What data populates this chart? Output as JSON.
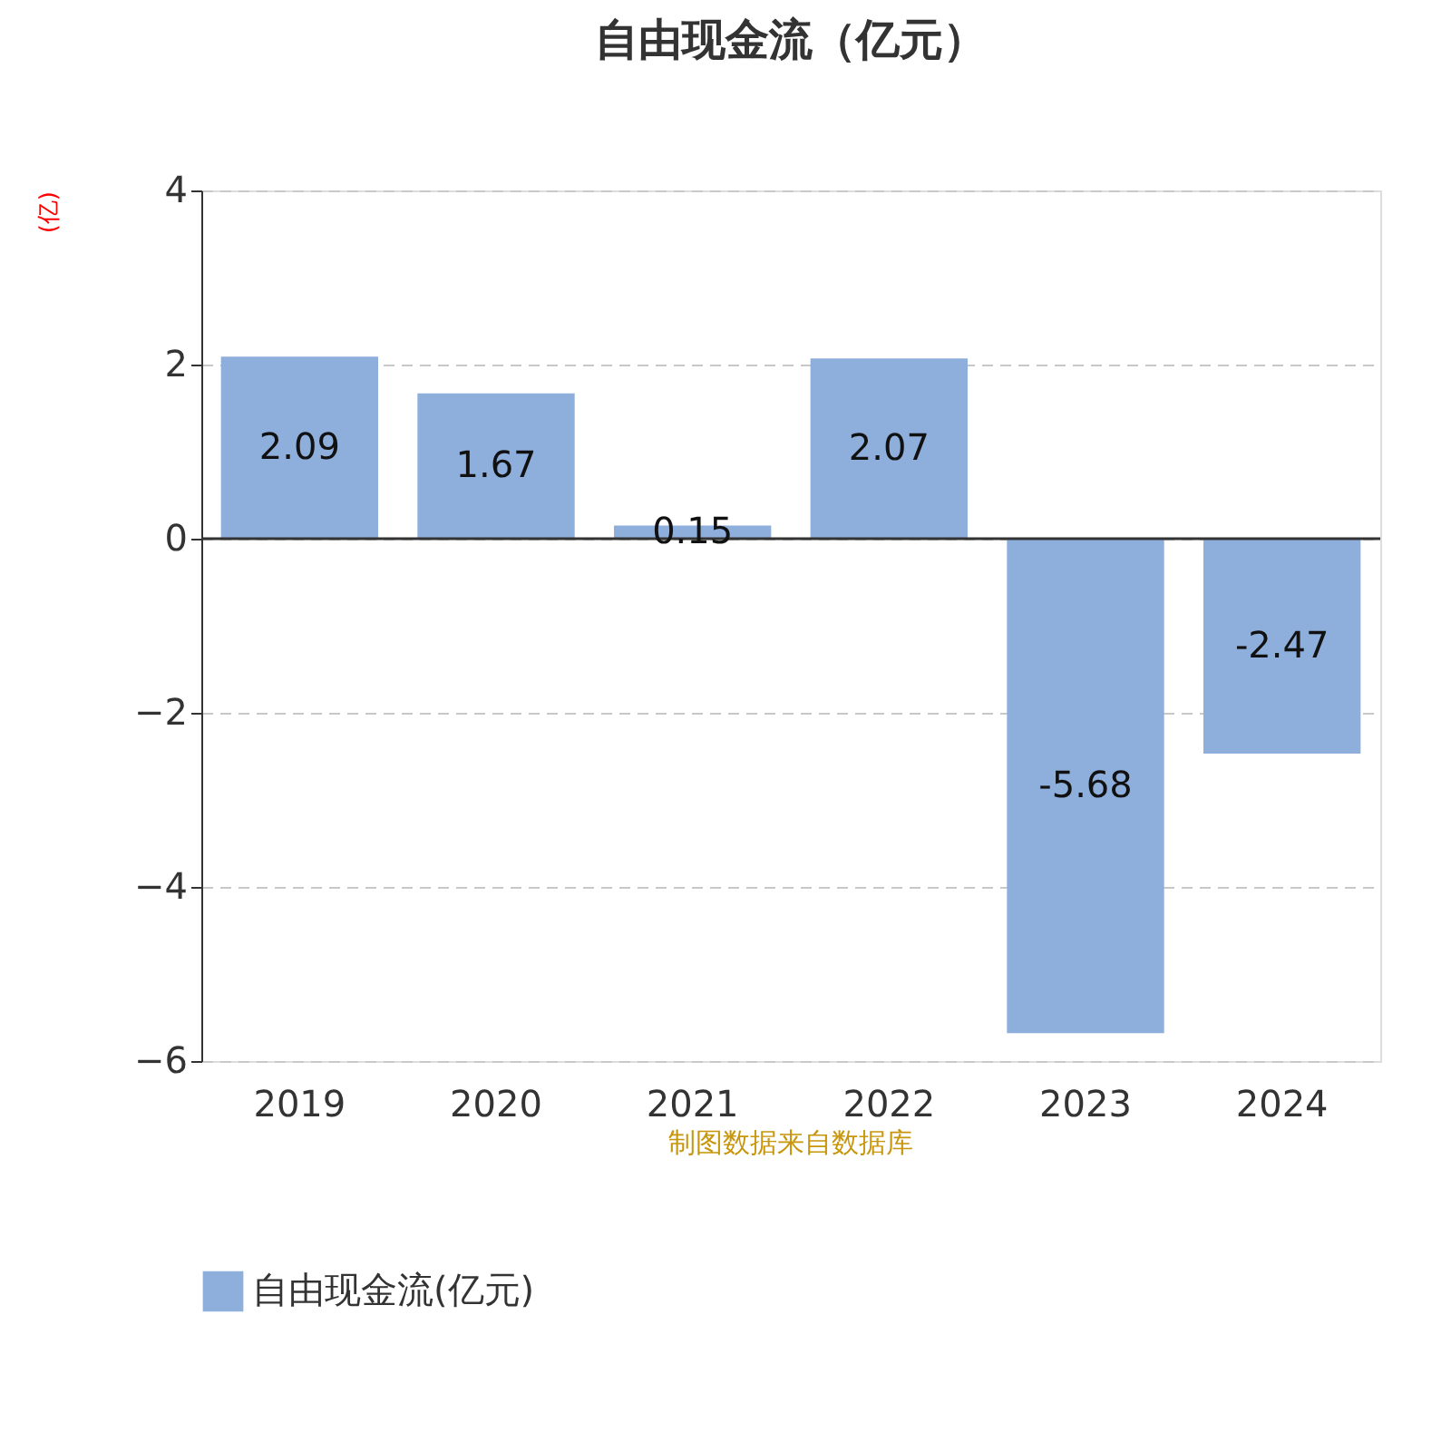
{
  "chart_data": {
    "type": "bar",
    "title": "自由现金流（亿元）",
    "ylabel": "(亿)",
    "categories": [
      "2019",
      "2020",
      "2021",
      "2022",
      "2023",
      "2024"
    ],
    "series": [
      {
        "name": "自由现金流(亿元)",
        "color": "#8eaedb",
        "values": [
          2.09,
          1.67,
          0.15,
          2.07,
          -5.68,
          -2.47
        ]
      }
    ],
    "ylim": [
      -6,
      4
    ],
    "yticks": [
      -6,
      -4,
      -2,
      0,
      2,
      4
    ],
    "grid": "y",
    "legend": "bottom",
    "data_labels": true,
    "annotations": [
      "制图数据来自数据库"
    ]
  }
}
